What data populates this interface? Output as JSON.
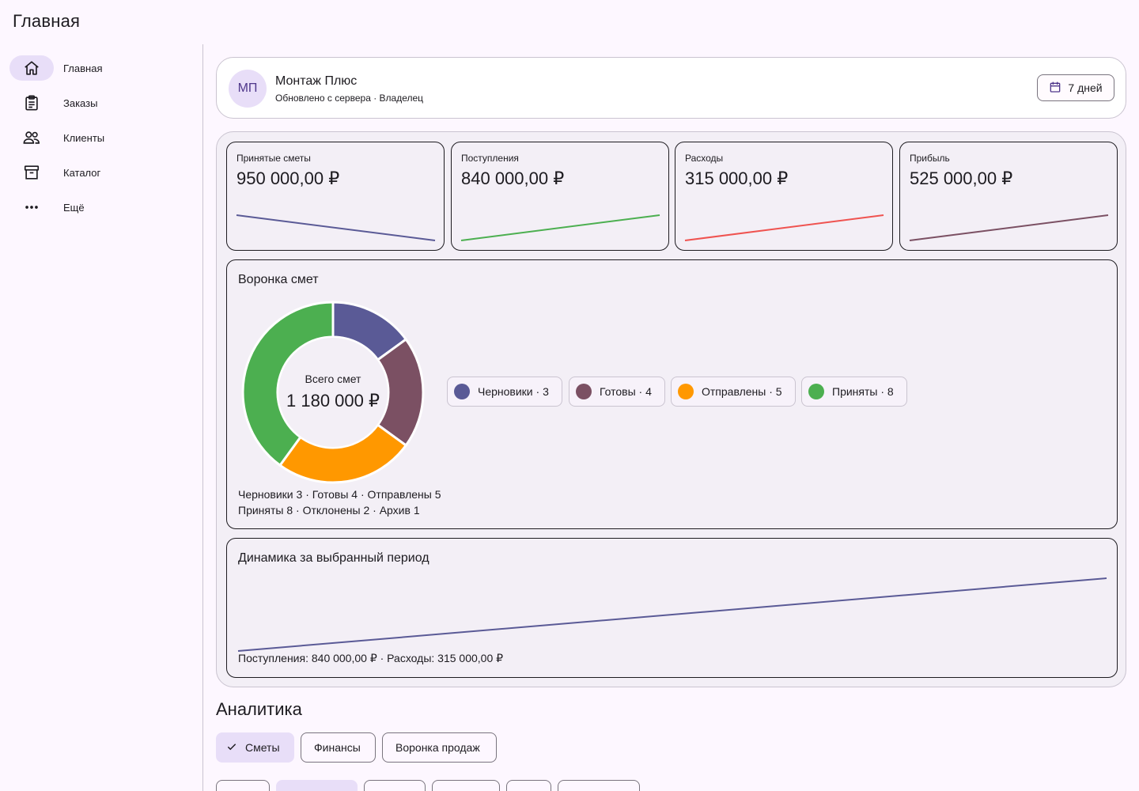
{
  "app": {
    "title": "Главная"
  },
  "sidebar": {
    "items": [
      {
        "label": "Главная",
        "icon": "home-icon",
        "active": true
      },
      {
        "label": "Заказы",
        "icon": "clipboard-icon",
        "active": false
      },
      {
        "label": "Клиенты",
        "icon": "people-icon",
        "active": false
      },
      {
        "label": "Каталог",
        "icon": "archive-icon",
        "active": false
      },
      {
        "label": "Ещё",
        "icon": "more-horizontal-icon",
        "active": false
      }
    ]
  },
  "profile": {
    "initials": "МП",
    "name": "Монтаж Плюс",
    "subtitle": "Обновлено с сервера · Владелец",
    "period_label": "7 дней",
    "period_icon": "calendar-icon"
  },
  "kpis": [
    {
      "label": "Принятые сметы",
      "value": "950 000,00 ₽",
      "color": "#5a5a96",
      "trend": [
        1,
        0
      ]
    },
    {
      "label": "Поступления",
      "value": "840 000,00 ₽",
      "color": "#4caf50",
      "trend": [
        0,
        1
      ]
    },
    {
      "label": "Расходы",
      "value": "315 000,00 ₽",
      "color": "#ef5350",
      "trend": [
        0,
        1
      ]
    },
    {
      "label": "Прибыль",
      "value": "525 000,00 ₽",
      "color": "#7b5063",
      "trend": [
        0,
        1
      ]
    }
  ],
  "funnel": {
    "title": "Воронка смет",
    "center_label": "Всего смет",
    "center_value": "1 180 000 ₽",
    "segments": [
      {
        "name": "Черновики",
        "count": 3,
        "chip": "Черновики · 3",
        "color": "#5a5a96"
      },
      {
        "name": "Готовы",
        "count": 4,
        "chip": "Готовы · 4",
        "color": "#7b5063"
      },
      {
        "name": "Отправлены",
        "count": 5,
        "chip": "Отправлены · 5",
        "color": "#ff9800"
      },
      {
        "name": "Приняты",
        "count": 8,
        "chip": "Приняты · 8",
        "color": "#4caf50"
      }
    ],
    "summary_line1": "Черновики 3 · Готовы 4 · Отправлены 5",
    "summary_line2": "Приняты 8 · Отклонены 2 · Архив 1"
  },
  "dynamics": {
    "title": "Динамика за выбранный период",
    "summary": "Поступления: 840 000,00 ₽ · Расходы: 315 000,00 ₽",
    "color": "#5a5a96",
    "trend": [
      0,
      1
    ]
  },
  "analytics": {
    "title": "Аналитика",
    "tabs": [
      {
        "label": "Сметы",
        "selected": true
      },
      {
        "label": "Финансы",
        "selected": false
      },
      {
        "label": "Воронка продаж",
        "selected": false
      }
    ]
  },
  "colors": {
    "accent": "#5a5a96",
    "secondary_container": "#e8def8"
  }
}
